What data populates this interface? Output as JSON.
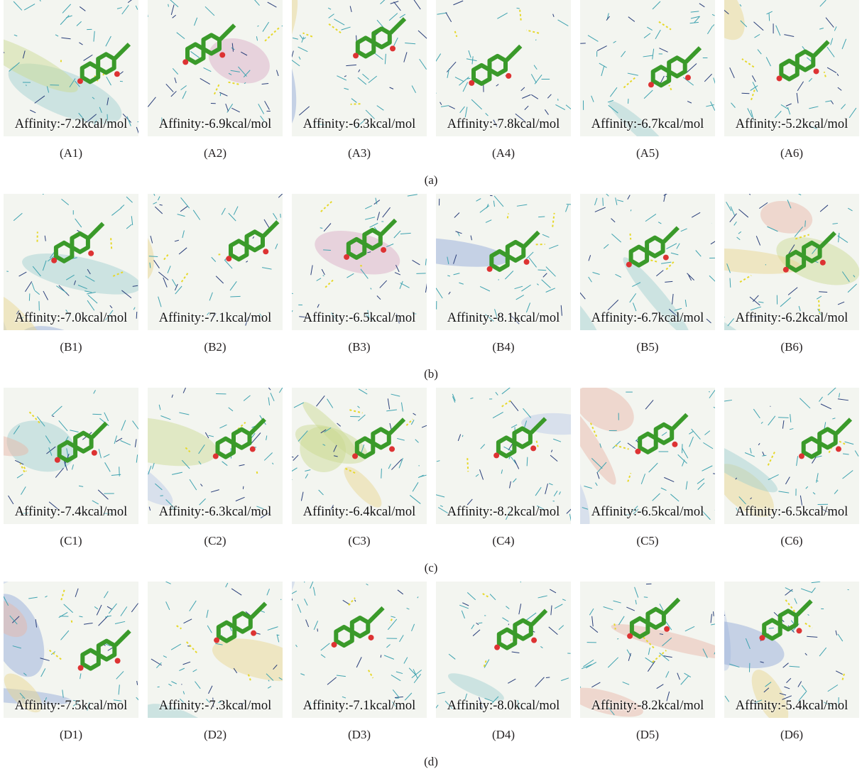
{
  "rows": [
    {
      "label": "(a)",
      "panels": [
        {
          "label": "(A1)",
          "affinity": "Affinity:-7.2kcal/mol"
        },
        {
          "label": "(A2)",
          "affinity": "Affinity:-6.9kcal/mol"
        },
        {
          "label": "(A3)",
          "affinity": "Affinity:-6.3kcal/mol"
        },
        {
          "label": "(A4)",
          "affinity": "Affinity:-7.8kcal/mol"
        },
        {
          "label": "(A5)",
          "affinity": "Affinity:-6.7kcal/mol"
        },
        {
          "label": "(A6)",
          "affinity": "Affinity:-5.2kcal/mol"
        }
      ]
    },
    {
      "label": "(b)",
      "panels": [
        {
          "label": "(B1)",
          "affinity": "Affinity:-7.0kcal/mol"
        },
        {
          "label": "(B2)",
          "affinity": "Affinity:-7.1kcal/mol"
        },
        {
          "label": "(B3)",
          "affinity": "Affinity:-6.5kcal/mol"
        },
        {
          "label": "(B4)",
          "affinity": "Affinity:-8.1kcal/mol"
        },
        {
          "label": "(B5)",
          "affinity": "Affinity:-6.7kcal/mol"
        },
        {
          "label": "(B6)",
          "affinity": "Affinity:-6.2kcal/mol"
        }
      ]
    },
    {
      "label": "(c)",
      "panels": [
        {
          "label": "(C1)",
          "affinity": "Affinity:-7.4kcal/mol"
        },
        {
          "label": "(C2)",
          "affinity": "Affinity:-6.3kcal/mol"
        },
        {
          "label": "(C3)",
          "affinity": "Affinity:-6.4kcal/mol"
        },
        {
          "label": "(C4)",
          "affinity": "Affinity:-8.2kcal/mol"
        },
        {
          "label": "(C5)",
          "affinity": "Affinity:-6.5kcal/mol"
        },
        {
          "label": "(C6)",
          "affinity": "Affinity:-6.5kcal/mol"
        }
      ]
    },
    {
      "label": "(d)",
      "panels": [
        {
          "label": "(D1)",
          "affinity": "Affinity:-7.5kcal/mol"
        },
        {
          "label": "(D2)",
          "affinity": "Affinity:-7.3kcal/mol"
        },
        {
          "label": "(D3)",
          "affinity": "Affinity:-7.1kcal/mol"
        },
        {
          "label": "(D4)",
          "affinity": "Affinity:-8.0kcal/mol"
        },
        {
          "label": "(D5)",
          "affinity": "Affinity:-8.2kcal/mol"
        },
        {
          "label": "(D6)",
          "affinity": "Affinity:-5.4kcal/mol"
        }
      ]
    }
  ]
}
